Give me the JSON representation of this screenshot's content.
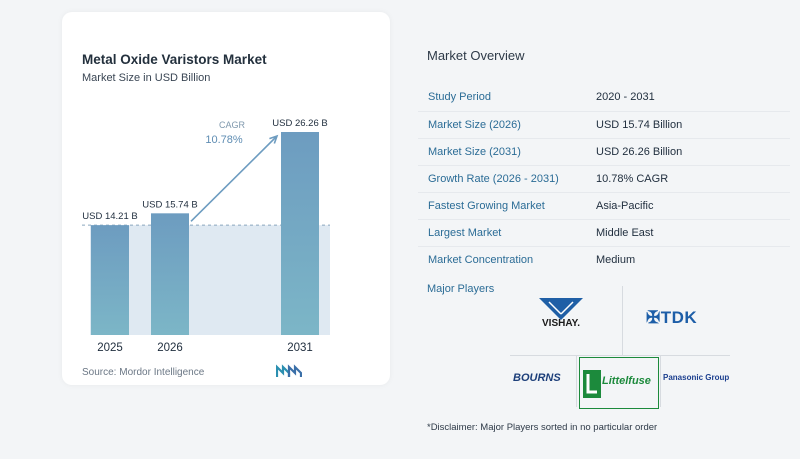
{
  "chart_data": {
    "type": "bar",
    "title": "Metal Oxide Varistors Market",
    "subtitle": "Market Size in USD Billion",
    "categories": [
      "2025",
      "2026",
      "2031"
    ],
    "values": [
      14.21,
      15.74,
      26.26
    ],
    "data_labels": [
      "USD 14.21 B",
      "USD 15.74 B",
      "USD 26.26 B"
    ],
    "cagr_label": "CAGR",
    "cagr_value": "10.78%",
    "source": "Source: Mordor Intelligence",
    "bar_color": "#6d9cc0",
    "bar_color_bottom": "#7ab6c6",
    "area_color": "#dfe9f2",
    "arrow_color": "#6d9cc0"
  },
  "overview": {
    "heading": "Market Overview",
    "rows": [
      {
        "label": "Study Period",
        "value": "2020 - 2031"
      },
      {
        "label": "Market Size (2026)",
        "value": "USD 15.74 Billion"
      },
      {
        "label": "Market Size (2031)",
        "value": "USD 26.26 Billion"
      },
      {
        "label": "Growth Rate (2026 - 2031)",
        "value": "10.78% CAGR"
      },
      {
        "label": "Fastest Growing Market",
        "value": "Asia-Pacific"
      },
      {
        "label": "Largest Market",
        "value": "Middle East"
      },
      {
        "label": "Market Concentration",
        "value": "Medium"
      }
    ],
    "players_heading": "Major Players",
    "players": {
      "vishay": "VISHAY.",
      "tdk": "TDK",
      "bourns": "BOURNS",
      "littelfuse": "Littelfuse",
      "panasonic": "Panasonic Group"
    },
    "disclaimer": "*Disclaimer: Major Players sorted in no particular order"
  }
}
